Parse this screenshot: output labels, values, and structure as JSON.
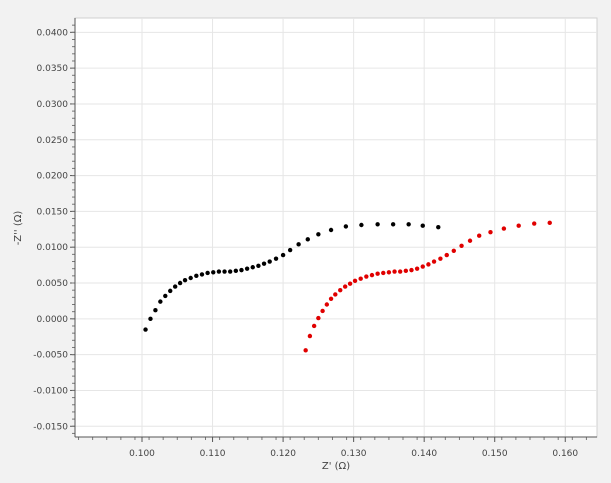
{
  "chart_data": {
    "type": "scatter",
    "title": "",
    "xlabel": "Z' (Ω)",
    "ylabel": "-Z'' (Ω)",
    "xlim": [
      0.0905,
      0.1645
    ],
    "ylim": [
      -0.0165,
      0.042
    ],
    "grid": true,
    "x_ticks": [
      {
        "value": 0.1,
        "label": "0.100"
      },
      {
        "value": 0.11,
        "label": "0.110"
      },
      {
        "value": 0.12,
        "label": "0.120"
      },
      {
        "value": 0.13,
        "label": "0.130"
      },
      {
        "value": 0.14,
        "label": "0.140"
      },
      {
        "value": 0.15,
        "label": "0.150"
      },
      {
        "value": 0.16,
        "label": "0.160"
      }
    ],
    "y_ticks": [
      {
        "value": 0.04,
        "label": "0.0400"
      },
      {
        "value": 0.035,
        "label": "0.0350"
      },
      {
        "value": 0.03,
        "label": "0.0300"
      },
      {
        "value": 0.025,
        "label": "0.0250"
      },
      {
        "value": 0.02,
        "label": "0.0200"
      },
      {
        "value": 0.015,
        "label": "0.0150"
      },
      {
        "value": 0.01,
        "label": "0.0100"
      },
      {
        "value": 0.005,
        "label": "0.0050"
      },
      {
        "value": 0.0,
        "label": "0.0000"
      },
      {
        "value": -0.005,
        "label": "-0.0050"
      },
      {
        "value": -0.01,
        "label": "-0.0100"
      },
      {
        "value": -0.015,
        "label": "-0.0150"
      }
    ],
    "series": [
      {
        "color": "#000000",
        "x": [
          0.1005,
          0.1012,
          0.1019,
          0.1026,
          0.1033,
          0.104,
          0.1047,
          0.1054,
          0.1061,
          0.1069,
          0.1077,
          0.1085,
          0.1093,
          0.1101,
          0.1109,
          0.1117,
          0.1125,
          0.1133,
          0.1141,
          0.1149,
          0.1157,
          0.1165,
          0.1173,
          0.1181,
          0.119,
          0.12,
          0.121,
          0.1222,
          0.1235,
          0.125,
          0.1268,
          0.1289,
          0.1311,
          0.1334,
          0.1356,
          0.1378,
          0.1398,
          0.142
        ],
        "y": [
          -0.0015,
          0.0,
          0.0012,
          0.0024,
          0.0032,
          0.0039,
          0.0045,
          0.005,
          0.0054,
          0.0057,
          0.006,
          0.0062,
          0.0064,
          0.0065,
          0.0066,
          0.0066,
          0.0066,
          0.0067,
          0.0068,
          0.007,
          0.0072,
          0.0074,
          0.0077,
          0.008,
          0.0084,
          0.0089,
          0.0096,
          0.0104,
          0.0111,
          0.0118,
          0.0124,
          0.0129,
          0.0131,
          0.0132,
          0.0132,
          0.0132,
          0.013,
          0.0128
        ]
      },
      {
        "color": "#e00000",
        "x": [
          0.1232,
          0.1238,
          0.1244,
          0.125,
          0.1256,
          0.1262,
          0.1268,
          0.1274,
          0.1281,
          0.1288,
          0.1295,
          0.1302,
          0.131,
          0.1318,
          0.1326,
          0.1334,
          0.1342,
          0.135,
          0.1358,
          0.1366,
          0.1374,
          0.1382,
          0.139,
          0.1398,
          0.1406,
          0.1414,
          0.1423,
          0.1432,
          0.1442,
          0.1453,
          0.1465,
          0.1478,
          0.1494,
          0.1513,
          0.1534,
          0.1556,
          0.1578
        ],
        "y": [
          -0.0044,
          -0.0024,
          -0.001,
          0.0001,
          0.0011,
          0.002,
          0.0028,
          0.0034,
          0.004,
          0.0045,
          0.0049,
          0.0053,
          0.0056,
          0.0059,
          0.0061,
          0.0063,
          0.0064,
          0.0065,
          0.0066,
          0.0066,
          0.0067,
          0.0068,
          0.007,
          0.0073,
          0.0076,
          0.008,
          0.0084,
          0.0089,
          0.0095,
          0.0102,
          0.0109,
          0.0116,
          0.0121,
          0.0126,
          0.013,
          0.0133,
          0.0134
        ]
      }
    ]
  }
}
